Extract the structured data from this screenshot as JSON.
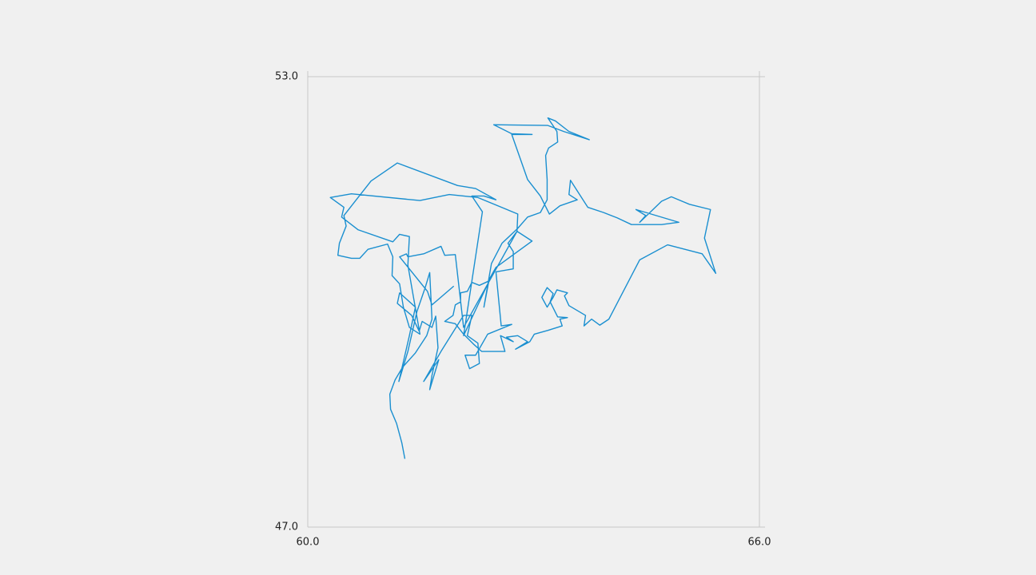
{
  "chart_data": {
    "type": "line",
    "color": "#1a8fd0",
    "grid": true,
    "xlim": [
      60,
      66
    ],
    "ylim": [
      47,
      53
    ],
    "xticks": [
      {
        "value": 60,
        "label": "60.0"
      },
      {
        "value": 66,
        "label": "66.0"
      }
    ],
    "yticks": [
      {
        "value": 47,
        "label": "47.0"
      },
      {
        "value": 53,
        "label": "53.0"
      }
    ],
    "x": [
      61.29,
      61.25,
      61.18,
      61.1,
      61.09,
      61.16,
      61.26,
      61.43,
      61.58,
      61.65,
      61.62,
      61.56,
      61.45,
      61.33,
      61.21,
      61.35,
      61.43,
      61.22,
      61.19,
      61.38,
      61.48,
      61.52,
      61.65,
      61.7,
      61.73,
      61.65,
      61.62,
      61.74,
      61.54,
      61.77,
      62.07,
      62.18,
      62.12,
      62.26,
      62.28,
      62.15,
      62.09,
      62.23,
      62.39,
      62.71,
      62.57,
      62.5,
      62.73,
      62.73,
      62.66,
      62.78,
      62.98,
      62.5,
      62.41,
      62.34,
      62.44,
      62.58,
      62.79,
      62.92,
      63.09,
      63.18,
      63.18,
      63.16,
      63.2,
      63.32,
      63.31,
      63.19,
      63.29,
      63.47,
      63.74,
      63.4,
      63.19,
      62.47,
      62.71,
      62.98,
      62.71,
      62.92,
      63.09,
      63.21,
      63.35,
      63.58,
      63.47,
      63.49,
      63.72,
      63.93,
      64.11,
      64.3,
      64.7,
      64.93,
      64.36,
      64.49,
      64.41,
      64.7,
      64.83,
      65.07,
      65.35,
      65.27,
      65.42,
      65.24,
      64.78,
      64.41,
      64.0,
      63.88,
      63.77,
      63.67,
      63.69,
      63.47,
      63.41,
      63.45,
      63.31,
      63.26,
      63.18,
      63.11,
      63.18,
      63.26,
      63.22,
      63.32,
      63.45,
      63.35,
      63.38,
      63.19,
      63.01,
      62.95,
      62.76,
      62.92,
      62.79,
      62.64,
      62.73,
      62.56,
      62.62,
      62.31,
      62.21,
      62.07,
      61.96,
      61.82,
      61.93,
      61.96,
      62.03,
      62.03,
      62.12,
      62.18,
      62.28,
      62.41,
      62.07,
      62.32,
      62.18,
      62.34,
      62.5,
      62.23,
      61.99,
      61.19,
      60.84,
      60.48,
      60.51,
      60.42,
      60.4,
      60.58,
      60.69,
      60.8,
      61.06,
      61.13,
      61.12,
      61.22,
      61.27,
      61.35,
      61.49,
      61.33,
      61.35,
      61.22,
      61.13,
      60.67,
      60.45,
      60.48,
      60.3,
      60.58,
      61.49,
      61.88,
      62.26,
      62.79,
      62.78,
      62.07,
      61.96,
      61.82,
      61.77,
      61.54,
      61.33,
      61.31,
      61.22,
      61.59,
      61.65,
      61.94
    ],
    "values": [
      47.91,
      48.12,
      48.38,
      48.57,
      48.77,
      48.96,
      49.13,
      49.32,
      49.55,
      49.77,
      50.39,
      50.19,
      49.87,
      49.34,
      48.94,
      49.55,
      49.93,
      50.12,
      49.98,
      49.82,
      49.61,
      49.74,
      49.66,
      49.81,
      49.39,
      49.02,
      48.83,
      49.23,
      48.94,
      49.34,
      49.82,
      49.82,
      49.55,
      49.45,
      49.18,
      49.11,
      49.29,
      49.29,
      49.57,
      49.7,
      49.68,
      50.4,
      50.44,
      50.67,
      50.78,
      50.94,
      50.81,
      50.46,
      50.3,
      49.93,
      50.51,
      50.78,
      50.98,
      51.13,
      51.19,
      51.36,
      51.63,
      51.95,
      52.05,
      52.13,
      52.27,
      52.45,
      52.41,
      52.27,
      52.16,
      52.27,
      52.35,
      52.36,
      52.24,
      52.23,
      52.23,
      51.63,
      51.41,
      51.17,
      51.28,
      51.36,
      51.43,
      51.62,
      51.26,
      51.19,
      51.12,
      51.03,
      51.03,
      51.06,
      51.23,
      51.15,
      51.06,
      51.34,
      51.4,
      51.3,
      51.23,
      50.85,
      50.38,
      50.64,
      50.76,
      50.56,
      49.77,
      49.69,
      49.77,
      49.68,
      49.82,
      49.95,
      50.08,
      50.12,
      50.16,
      50.06,
      49.93,
      50.06,
      50.19,
      50.11,
      50.0,
      49.8,
      49.79,
      49.77,
      49.68,
      49.62,
      49.57,
      49.47,
      49.37,
      49.47,
      49.55,
      49.53,
      49.47,
      49.55,
      49.34,
      49.34,
      49.43,
      49.57,
      49.71,
      49.74,
      49.82,
      49.96,
      50.0,
      50.12,
      50.14,
      50.26,
      50.22,
      50.28,
      49.55,
      51.2,
      51.41,
      51.41,
      51.36,
      51.51,
      51.55,
      51.85,
      51.61,
      51.15,
      51.01,
      50.78,
      50.62,
      50.58,
      50.58,
      50.7,
      50.77,
      50.6,
      50.35,
      50.24,
      49.93,
      49.66,
      49.57,
      50.49,
      50.87,
      50.9,
      50.8,
      50.96,
      51.13,
      51.26,
      51.39,
      51.44,
      51.35,
      51.43,
      51.39,
      51.17,
      50.94,
      49.66,
      50.63,
      50.62,
      50.74,
      50.64,
      50.6,
      50.64,
      50.6,
      50.14,
      49.96,
      50.21
    ]
  }
}
